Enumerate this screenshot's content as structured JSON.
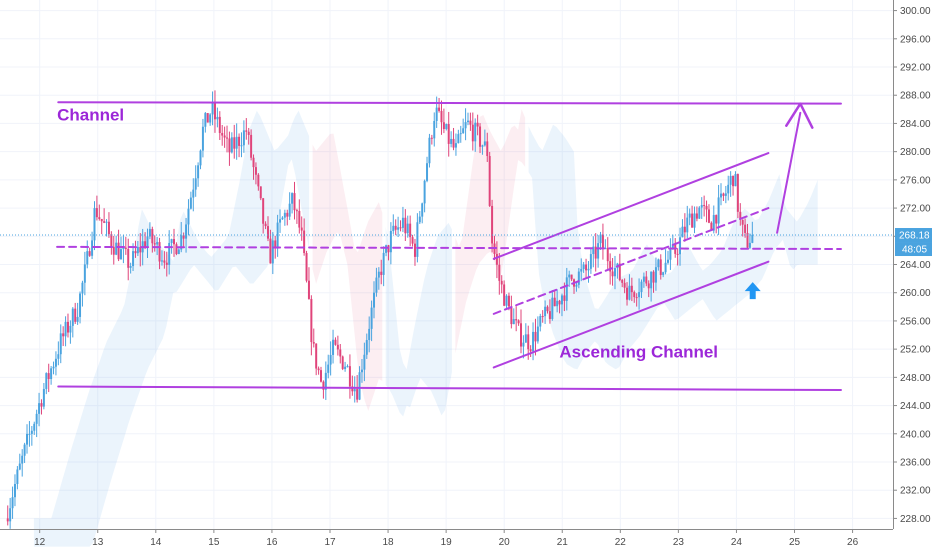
{
  "chart_data": {
    "type": "candlestick",
    "title": "",
    "xlabel": "",
    "ylabel": "",
    "x_ticks": [
      "12",
      "13",
      "14",
      "15",
      "16",
      "17",
      "18",
      "19",
      "20",
      "21",
      "22",
      "23",
      "24",
      "25",
      "26"
    ],
    "y_ticks": [
      "228.00",
      "232.00",
      "236.00",
      "240.00",
      "244.00",
      "248.00",
      "252.00",
      "256.00",
      "260.00",
      "264.00",
      "268.00",
      "272.00",
      "276.00",
      "280.00",
      "284.00",
      "288.00",
      "292.00",
      "296.00",
      "300.00"
    ],
    "ylim": [
      226.5,
      301.5
    ],
    "xlim": [
      11.42,
      26.3
    ],
    "grid": true,
    "colors": {
      "up": "#4aa3df",
      "down": "#e0447a",
      "annotation": "#b040e0",
      "arrow_up": "#2196f3",
      "last_price": "#4aa3df"
    },
    "price_path": [
      [
        11.45,
        228
      ],
      [
        11.8,
        238
      ],
      [
        12.1,
        246
      ],
      [
        12.4,
        253
      ],
      [
        12.7,
        258
      ],
      [
        12.85,
        264
      ],
      [
        13.0,
        272
      ],
      [
        13.3,
        267
      ],
      [
        13.6,
        264
      ],
      [
        13.9,
        268
      ],
      [
        14.2,
        265
      ],
      [
        14.5,
        268
      ],
      [
        14.7,
        276
      ],
      [
        14.85,
        283
      ],
      [
        15.0,
        286
      ],
      [
        15.3,
        280
      ],
      [
        15.6,
        283
      ],
      [
        15.85,
        272
      ],
      [
        16.0,
        265
      ],
      [
        16.2,
        270
      ],
      [
        16.4,
        273
      ],
      [
        16.55,
        268
      ],
      [
        16.75,
        252
      ],
      [
        16.9,
        247
      ],
      [
        17.1,
        252
      ],
      [
        17.3,
        250
      ],
      [
        17.5,
        246
      ],
      [
        17.7,
        255
      ],
      [
        17.9,
        263
      ],
      [
        18.1,
        268
      ],
      [
        18.3,
        270
      ],
      [
        18.5,
        266
      ],
      [
        18.7,
        278
      ],
      [
        18.85,
        286
      ],
      [
        19.0,
        283
      ],
      [
        19.2,
        280
      ],
      [
        19.4,
        284
      ],
      [
        19.6,
        282
      ],
      [
        19.75,
        280
      ],
      [
        19.82,
        268
      ],
      [
        19.95,
        262
      ],
      [
        20.1,
        258
      ],
      [
        20.3,
        254
      ],
      [
        20.5,
        253
      ],
      [
        20.7,
        256
      ],
      [
        20.9,
        258
      ],
      [
        21.2,
        262
      ],
      [
        21.45,
        263
      ],
      [
        21.7,
        267
      ],
      [
        21.9,
        264
      ],
      [
        22.2,
        260
      ],
      [
        22.5,
        262
      ],
      [
        22.8,
        264
      ],
      [
        23.0,
        266
      ],
      [
        23.2,
        270
      ],
      [
        23.4,
        272
      ],
      [
        23.6,
        270
      ],
      [
        23.8,
        273
      ],
      [
        24.0,
        277
      ],
      [
        24.1,
        270
      ],
      [
        24.2,
        267
      ],
      [
        24.3,
        268
      ]
    ],
    "last_price_label": "268.18",
    "countdown_label": "48:05",
    "annotations": [
      {
        "text": "Channel",
        "x": 12.3,
        "y": 284.4
      },
      {
        "text": "Ascending Channel",
        "x": 20.95,
        "y": 250.8
      }
    ],
    "lines": [
      {
        "kind": "horizontal-resistance",
        "style": "solid",
        "from": [
          12.32,
          287.0
        ],
        "to": [
          25.8,
          286.8
        ]
      },
      {
        "kind": "horizontal-support",
        "style": "solid",
        "from": [
          12.32,
          246.7
        ],
        "to": [
          25.8,
          246.2
        ]
      },
      {
        "kind": "midline",
        "style": "dashed",
        "from": [
          12.3,
          266.5
        ],
        "to": [
          25.8,
          266.2
        ]
      },
      {
        "kind": "channel-upper",
        "style": "solid",
        "from": [
          19.82,
          264.8
        ],
        "to": [
          24.55,
          279.8
        ]
      },
      {
        "kind": "channel-middle",
        "style": "dashed",
        "from": [
          19.82,
          257.0
        ],
        "to": [
          24.55,
          272.0
        ]
      },
      {
        "kind": "channel-lower",
        "style": "solid",
        "from": [
          19.82,
          249.4
        ],
        "to": [
          24.55,
          264.4
        ]
      },
      {
        "kind": "projection",
        "style": "solid",
        "from": [
          24.7,
          268.5
        ],
        "to": [
          25.1,
          285.5
        ]
      }
    ],
    "arrows": [
      {
        "kind": "target-arrowhead",
        "tip": [
          25.1,
          286.8
        ]
      },
      {
        "kind": "bounce-marker",
        "tip": [
          24.28,
          261.5
        ]
      }
    ]
  }
}
